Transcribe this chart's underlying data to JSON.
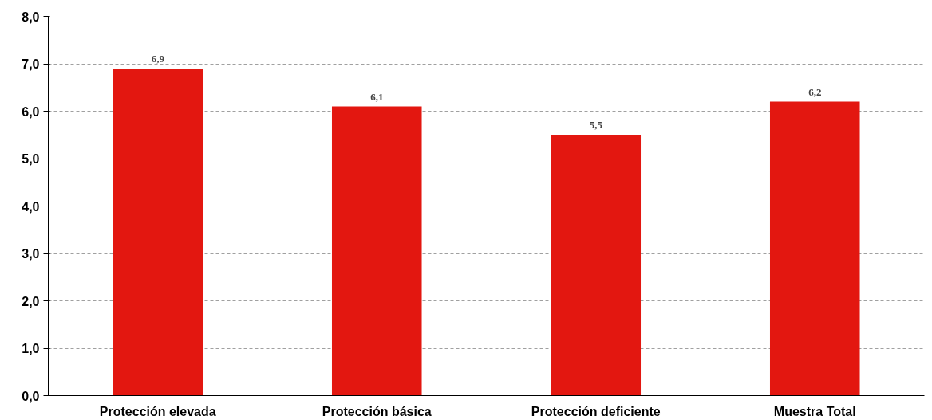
{
  "chart_data": {
    "type": "bar",
    "categories": [
      "Protección elevada",
      "Protección básica",
      "Protección deficiente",
      "Muestra Total"
    ],
    "values": [
      6.9,
      6.1,
      5.5,
      6.2
    ],
    "value_labels": [
      "6,9",
      "6,1",
      "5,5",
      "6,2"
    ],
    "color": "#e31710",
    "ylim": [
      0,
      8
    ],
    "yticks": [
      {
        "value": 0,
        "label": "0,0"
      },
      {
        "value": 1,
        "label": "1,0"
      },
      {
        "value": 2,
        "label": "2,0"
      },
      {
        "value": 3,
        "label": "3,0"
      },
      {
        "value": 4,
        "label": "4,0"
      },
      {
        "value": 5,
        "label": "5,0"
      },
      {
        "value": 6,
        "label": "6,0"
      },
      {
        "value": 7,
        "label": "7,0"
      },
      {
        "value": 8,
        "label": "8,0"
      }
    ],
    "grid": "y"
  }
}
